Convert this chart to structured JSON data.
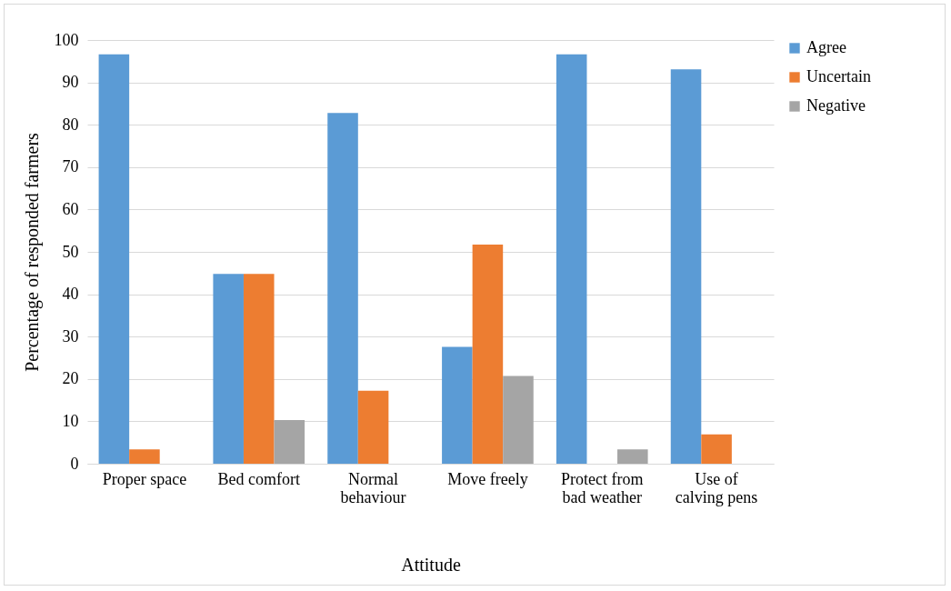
{
  "chart_data": {
    "type": "bar",
    "xlabel": "Attitude",
    "ylabel": "Percentage of responded farmers",
    "categories": [
      "Proper space",
      "Bed comfort",
      "Normal behaviour",
      "Move freely",
      "Protect from bad weather",
      "Use of calving pens"
    ],
    "series": [
      {
        "name": "Agree",
        "color": "#5b9bd5",
        "values": [
          96.6,
          44.8,
          82.8,
          27.6,
          96.6,
          93.1
        ]
      },
      {
        "name": "Uncertain",
        "color": "#ed7d31",
        "values": [
          3.4,
          44.8,
          17.2,
          51.7,
          0,
          6.9
        ]
      },
      {
        "name": "Negative",
        "color": "#a5a5a5",
        "values": [
          0,
          10.3,
          0,
          20.7,
          3.4,
          0
        ]
      }
    ],
    "ylim": [
      0,
      100
    ],
    "yticks": [
      0,
      10,
      20,
      30,
      40,
      50,
      60,
      70,
      80,
      90,
      100
    ],
    "grid": "y",
    "legend": "right"
  }
}
